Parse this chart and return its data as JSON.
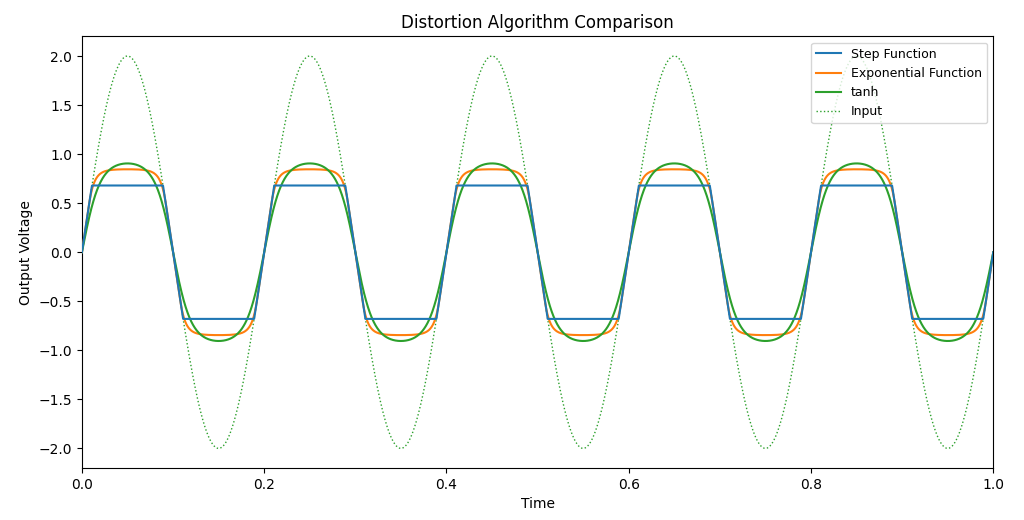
{
  "title": "Distortion Algorithm Comparison",
  "xlabel": "Time",
  "ylabel": "Output Voltage",
  "xlim": [
    0,
    1.0
  ],
  "ylim": [
    -2.2,
    2.2
  ],
  "freq": 5,
  "amplitude": 2.0,
  "clip_step": 0.68,
  "clip_exp_gain": 0.85,
  "clip_exp_knee": 0.5,
  "tanh_drive": 1.5,
  "n_samples": 5000,
  "colors": {
    "step": "#1f77b4",
    "exp": "#ff7f0e",
    "tanh": "#2ca02c",
    "input": "#2ca02c"
  },
  "legend_labels": [
    "Step Function",
    "Exponential Function",
    "tanh",
    "Input"
  ],
  "legend_loc": "upper right",
  "figsize": [
    10.24,
    5.2
  ],
  "dpi": 100,
  "yticks": [
    -2.0,
    -1.5,
    -1.0,
    -0.5,
    0.0,
    0.5,
    1.0,
    1.5,
    2.0
  ],
  "xticks": [
    0.0,
    0.2,
    0.4,
    0.6,
    0.8,
    1.0
  ]
}
